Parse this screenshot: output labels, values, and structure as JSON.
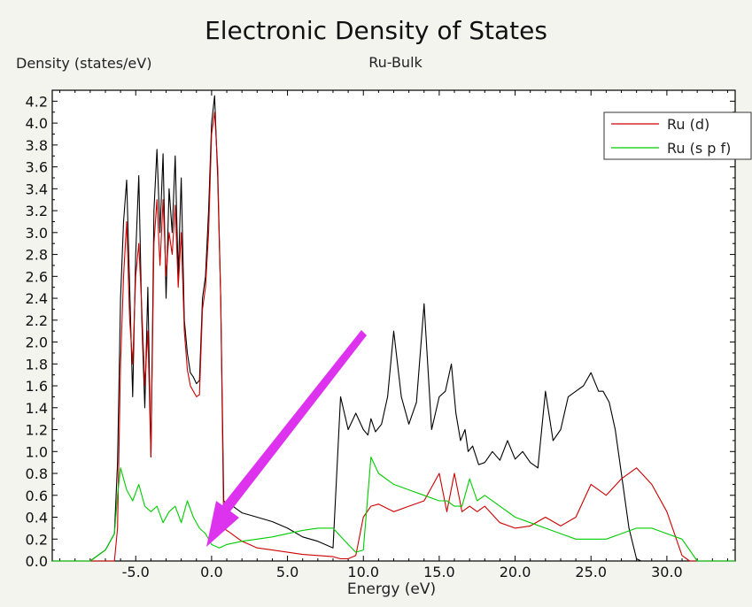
{
  "chart_data": {
    "type": "line",
    "title": "Electronic Density of States",
    "subtitle": "Ru-Bulk",
    "xlabel": "Energy (eV)",
    "ylabel": "Density (states/eV)",
    "xlim": [
      -10.5,
      34.5
    ],
    "ylim": [
      0,
      4.3
    ],
    "xticks": [
      -5.0,
      0.0,
      5.0,
      10.0,
      15.0,
      20.0,
      25.0,
      30.0
    ],
    "xtick_labels": [
      "-5.0",
      "0.0",
      "5.0",
      "10.0",
      "15.0",
      "20.0",
      "25.0",
      "30.0"
    ],
    "yticks": [
      0.0,
      0.2,
      0.4,
      0.6,
      0.8,
      1.0,
      1.2,
      1.4,
      1.6,
      1.8,
      2.0,
      2.2,
      2.4,
      2.6,
      2.8,
      3.0,
      3.2,
      3.4,
      3.6,
      3.8,
      4.0,
      4.2
    ],
    "ytick_labels": [
      "0.0",
      "0.2",
      "0.4",
      "0.6",
      "0.8",
      "1.0",
      "1.2",
      "1.4",
      "1.6",
      "1.8",
      "2.0",
      "2.2",
      "2.4",
      "2.6",
      "2.8",
      "3.0",
      "3.2",
      "3.4",
      "3.6",
      "3.8",
      "4.0",
      "4.2"
    ],
    "grid": false,
    "legend_position": "top-right",
    "series": [
      {
        "color": "#000000",
        "x": [
          -10.5,
          -8.0,
          -7.0,
          -6.4,
          -6.2,
          -6.0,
          -5.8,
          -5.6,
          -5.4,
          -5.2,
          -5.0,
          -4.8,
          -4.6,
          -4.4,
          -4.2,
          -4.0,
          -3.8,
          -3.6,
          -3.4,
          -3.2,
          -3.0,
          -2.8,
          -2.6,
          -2.4,
          -2.2,
          -2.0,
          -1.8,
          -1.6,
          -1.4,
          -1.2,
          -1.0,
          -0.8,
          -0.6,
          -0.4,
          -0.2,
          0.0,
          0.2,
          0.4,
          0.6,
          0.8,
          1.0,
          1.2,
          1.4,
          1.6,
          1.8,
          2.0,
          2.5,
          3.0,
          4.0,
          5.0,
          6.0,
          7.0,
          8.0,
          8.5,
          9.0,
          9.5,
          10.0,
          10.3,
          10.5,
          10.8,
          11.2,
          11.6,
          12.0,
          12.5,
          13.0,
          13.5,
          14.0,
          14.5,
          15.0,
          15.4,
          15.8,
          16.1,
          16.4,
          16.7,
          16.9,
          17.2,
          17.6,
          18.0,
          18.5,
          19.0,
          19.5,
          20.0,
          20.5,
          21.0,
          21.5,
          22.0,
          22.5,
          23.0,
          23.5,
          24.0,
          24.5,
          25.0,
          25.5,
          25.8,
          26.2,
          26.6,
          27.0,
          27.5,
          28.0,
          28.3,
          28.6,
          29.0,
          29.4,
          29.8,
          30.2,
          30.6,
          31.0,
          31.5,
          32.0,
          34.5
        ],
        "y": [
          0.0,
          0.0,
          0.1,
          0.25,
          0.9,
          2.4,
          3.1,
          3.48,
          2.5,
          1.5,
          2.8,
          3.52,
          2.2,
          1.4,
          2.5,
          0.95,
          3.2,
          3.76,
          3.0,
          3.72,
          2.4,
          3.4,
          3.0,
          3.7,
          2.6,
          3.5,
          2.2,
          1.9,
          1.72,
          1.68,
          1.62,
          1.65,
          2.4,
          2.6,
          3.2,
          4.0,
          4.25,
          3.5,
          2.4,
          0.55,
          0.52,
          0.51,
          0.5,
          0.48,
          0.46,
          0.44,
          0.42,
          0.4,
          0.36,
          0.3,
          0.22,
          0.18,
          0.12,
          1.5,
          1.2,
          1.35,
          1.2,
          1.15,
          1.3,
          1.18,
          1.25,
          1.5,
          2.1,
          1.5,
          1.25,
          1.45,
          2.35,
          1.2,
          1.5,
          1.55,
          1.8,
          1.35,
          1.1,
          1.2,
          1.0,
          1.05,
          0.88,
          0.9,
          1.0,
          0.92,
          1.1,
          0.93,
          1.0,
          0.9,
          0.85,
          1.55,
          1.1,
          1.2,
          1.5,
          1.55,
          1.6,
          1.72,
          1.55,
          1.55,
          1.45,
          1.2,
          0.8,
          0.3,
          0.02,
          0.0,
          0.0,
          0.0,
          0.0,
          0.0,
          0.0,
          0.0,
          0.0,
          0.0,
          0.0,
          0.0
        ]
      },
      {
        "name": "Ru (d)",
        "color": "#cc0000",
        "x": [
          -10.5,
          -6.4,
          -6.2,
          -6.0,
          -5.8,
          -5.6,
          -5.4,
          -5.2,
          -5.0,
          -4.8,
          -4.6,
          -4.4,
          -4.2,
          -4.0,
          -3.8,
          -3.6,
          -3.4,
          -3.2,
          -3.0,
          -2.8,
          -2.6,
          -2.4,
          -2.2,
          -2.0,
          -1.8,
          -1.6,
          -1.4,
          -1.2,
          -1.0,
          -0.8,
          -0.6,
          -0.4,
          -0.2,
          0.0,
          0.2,
          0.4,
          0.6,
          0.8,
          1.0,
          1.2,
          1.4,
          1.6,
          1.8,
          2.0,
          2.5,
          3.0,
          4.0,
          5.0,
          6.0,
          7.0,
          8.0,
          8.5,
          9.0,
          9.5,
          10.0,
          10.5,
          11.0,
          12.0,
          13.0,
          14.0,
          15.0,
          15.5,
          16.0,
          16.5,
          17.0,
          17.5,
          18.0,
          19.0,
          20.0,
          21.0,
          22.0,
          23.0,
          24.0,
          25.0,
          26.0,
          27.0,
          28.0,
          29.0,
          30.0,
          31.0,
          31.5,
          32.0,
          34.5
        ],
        "y": [
          0.0,
          0.0,
          0.3,
          1.8,
          2.6,
          3.1,
          2.2,
          1.8,
          2.6,
          2.9,
          2.3,
          1.6,
          2.1,
          0.95,
          2.9,
          3.3,
          2.7,
          3.3,
          2.6,
          3.0,
          2.8,
          3.25,
          2.5,
          3.0,
          2.1,
          1.75,
          1.6,
          1.55,
          1.5,
          1.52,
          2.3,
          2.5,
          3.0,
          3.9,
          4.1,
          3.6,
          2.4,
          0.3,
          0.28,
          0.26,
          0.24,
          0.22,
          0.2,
          0.18,
          0.15,
          0.12,
          0.1,
          0.08,
          0.06,
          0.05,
          0.04,
          0.02,
          0.02,
          0.05,
          0.4,
          0.5,
          0.52,
          0.45,
          0.5,
          0.55,
          0.8,
          0.45,
          0.8,
          0.45,
          0.5,
          0.45,
          0.5,
          0.35,
          0.3,
          0.32,
          0.4,
          0.32,
          0.4,
          0.7,
          0.6,
          0.75,
          0.85,
          0.7,
          0.45,
          0.05,
          0.0,
          0.0,
          0.0
        ]
      },
      {
        "name": "Ru (s p f)",
        "color": "#00cc00",
        "x": [
          -10.5,
          -8.0,
          -7.0,
          -6.4,
          -6.2,
          -6.0,
          -5.6,
          -5.2,
          -4.8,
          -4.4,
          -4.0,
          -3.6,
          -3.2,
          -2.8,
          -2.4,
          -2.0,
          -1.6,
          -1.2,
          -0.8,
          -0.4,
          0.0,
          0.5,
          1.0,
          2.0,
          3.0,
          4.0,
          5.0,
          6.0,
          7.0,
          8.0,
          9.0,
          9.5,
          10.0,
          10.5,
          11.0,
          12.0,
          13.0,
          14.0,
          15.0,
          15.5,
          16.0,
          16.5,
          17.0,
          17.5,
          18.0,
          19.0,
          20.0,
          21.0,
          22.0,
          23.0,
          24.0,
          25.0,
          26.0,
          27.0,
          28.0,
          29.0,
          30.0,
          31.0,
          32.0,
          34.5
        ],
        "y": [
          0.0,
          0.0,
          0.1,
          0.25,
          0.6,
          0.85,
          0.65,
          0.55,
          0.7,
          0.5,
          0.45,
          0.5,
          0.35,
          0.45,
          0.5,
          0.35,
          0.55,
          0.4,
          0.3,
          0.25,
          0.15,
          0.12,
          0.15,
          0.18,
          0.2,
          0.22,
          0.25,
          0.28,
          0.3,
          0.3,
          0.15,
          0.08,
          0.1,
          0.95,
          0.8,
          0.7,
          0.65,
          0.6,
          0.55,
          0.55,
          0.5,
          0.5,
          0.75,
          0.55,
          0.6,
          0.5,
          0.4,
          0.35,
          0.3,
          0.25,
          0.2,
          0.2,
          0.2,
          0.25,
          0.3,
          0.3,
          0.25,
          0.2,
          0.0,
          0.0
        ]
      }
    ]
  }
}
